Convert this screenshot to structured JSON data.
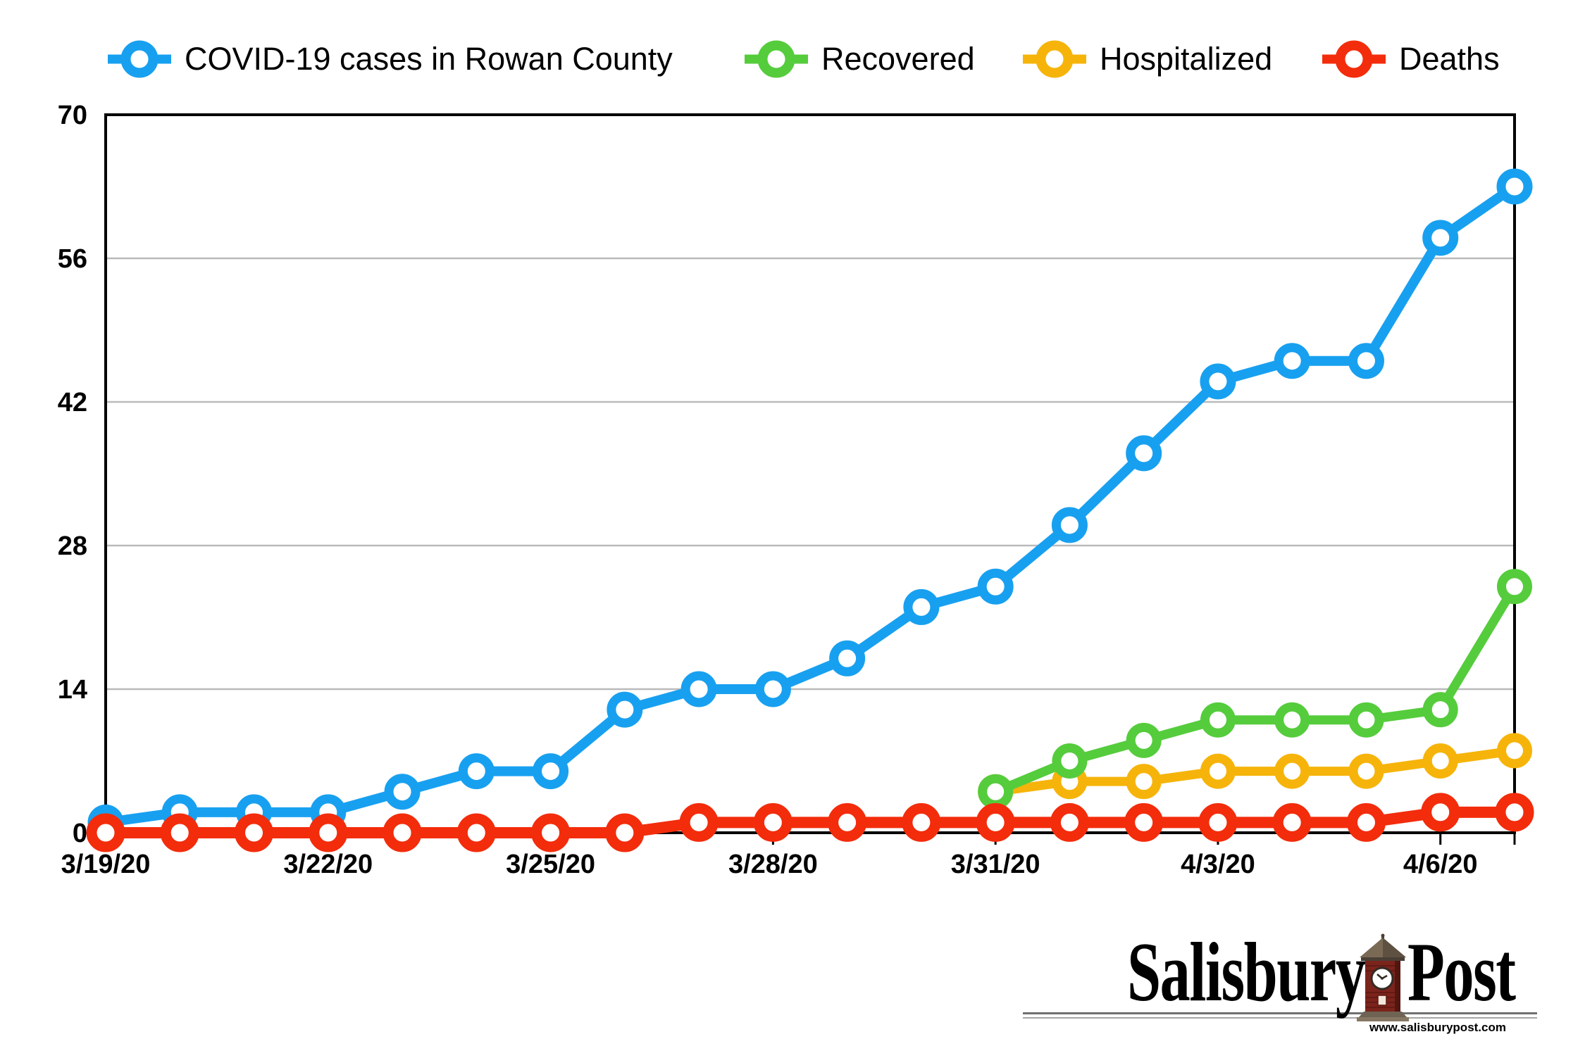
{
  "legend": {
    "items": [
      {
        "id": "cases",
        "label": "COVID-19 cases in Rowan County",
        "color": "#18a0f0"
      },
      {
        "id": "recovered",
        "label": "Recovered",
        "color": "#55cc3c"
      },
      {
        "id": "hospitalized",
        "label": "Hospitalized",
        "color": "#f6b40a"
      },
      {
        "id": "deaths",
        "label": "Deaths",
        "color": "#f32c0b"
      }
    ]
  },
  "chart_data": {
    "type": "line",
    "title": "COVID-19 cases in Rowan County",
    "xlabel": "",
    "ylabel": "",
    "ylim": [
      0,
      70
    ],
    "y_ticks": [
      0,
      14,
      28,
      42,
      56,
      70
    ],
    "grid": "horizontal",
    "grid_color": "#bababa",
    "axis_color": "#000000",
    "legend_position": "top",
    "dates": [
      "3/19/20",
      "3/20/20",
      "3/21/20",
      "3/22/20",
      "3/23/20",
      "3/24/20",
      "3/25/20",
      "3/26/20",
      "3/27/20",
      "3/28/20",
      "3/29/20",
      "3/30/20",
      "3/31/20",
      "4/1/20",
      "4/2/20",
      "4/3/20",
      "4/4/20",
      "4/5/20",
      "4/6/20",
      "4/7/20"
    ],
    "x_tick_labels": [
      "3/19/20",
      "3/22/20",
      "3/25/20",
      "3/28/20",
      "3/31/20",
      "4/3/20",
      "4/6/20"
    ],
    "x_tick_indices": [
      0,
      3,
      6,
      9,
      12,
      15,
      18
    ],
    "series": [
      {
        "id": "cases",
        "name": "COVID-19 cases in Rowan County",
        "color": "#18a0f0",
        "start_index": 0,
        "values": [
          1,
          2,
          2,
          2,
          4,
          6,
          6,
          12,
          14,
          14,
          17,
          22,
          24,
          30,
          37,
          44,
          46,
          46,
          58,
          63
        ]
      },
      {
        "id": "hospitalized",
        "name": "Hospitalized",
        "color": "#f6b40a",
        "start_index": 12,
        "values": [
          4,
          5,
          5,
          6,
          6,
          6,
          7,
          8
        ]
      },
      {
        "id": "recovered",
        "name": "Recovered",
        "color": "#55cc3c",
        "start_index": 12,
        "values": [
          4,
          7,
          9,
          11,
          11,
          11,
          12,
          24
        ]
      },
      {
        "id": "deaths",
        "name": "Deaths",
        "color": "#f32c0b",
        "start_index": 0,
        "values": [
          0,
          0,
          0,
          0,
          0,
          0,
          0,
          0,
          1,
          1,
          1,
          1,
          1,
          1,
          1,
          1,
          1,
          1,
          2,
          2
        ]
      }
    ]
  },
  "logo": {
    "name_left": "Salisbury",
    "name_right": "Post",
    "url": "www.salisburypost.com"
  }
}
